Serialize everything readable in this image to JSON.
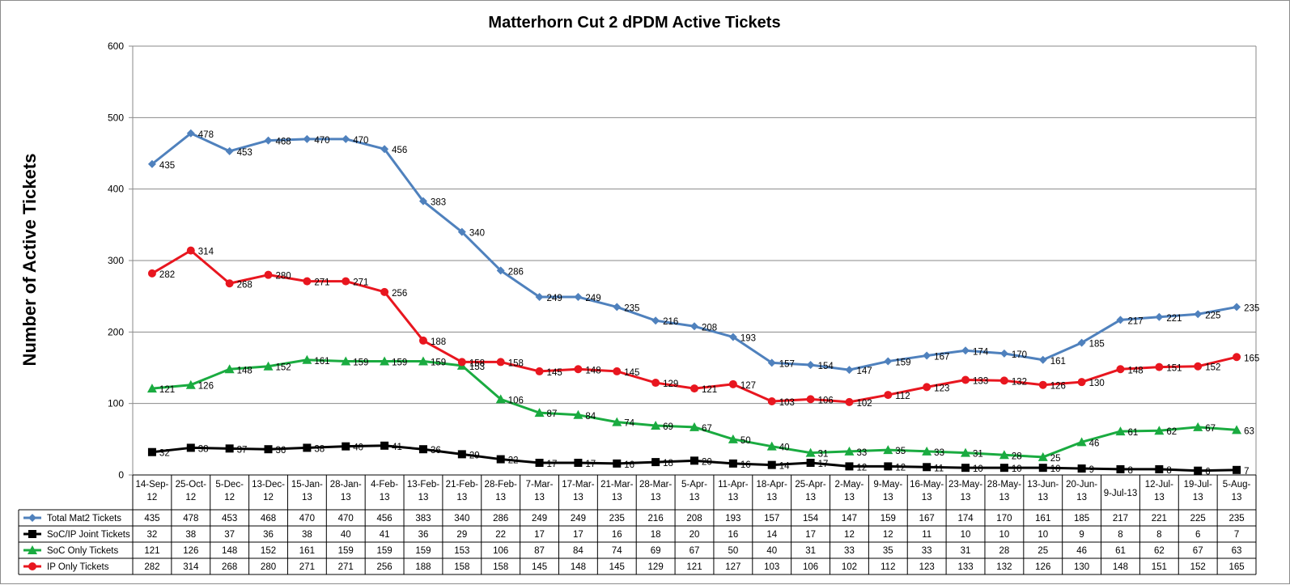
{
  "chart_data": {
    "type": "line",
    "title": "Matterhorn Cut 2 dPDM Active Tickets",
    "ylabel": "Number of Active Tickets",
    "xlabel": "",
    "ylim": [
      0,
      600
    ],
    "yticks": [
      "0",
      "100",
      "200",
      "300",
      "400",
      "500",
      "600"
    ],
    "grid": true,
    "legend": "data table below chart",
    "categories": [
      [
        "14-Sep-",
        "12"
      ],
      [
        "25-Oct-",
        "12"
      ],
      [
        "5-Dec-",
        "12"
      ],
      [
        "13-Dec-",
        "12"
      ],
      [
        "15-Jan-",
        "13"
      ],
      [
        "28-Jan-",
        "13"
      ],
      [
        "4-Feb-",
        "13"
      ],
      [
        "13-Feb-",
        "13"
      ],
      [
        "21-Feb-",
        "13"
      ],
      [
        "28-Feb-",
        "13"
      ],
      [
        "7-Mar-",
        "13"
      ],
      [
        "17-Mar-",
        "13"
      ],
      [
        "21-Mar-",
        "13"
      ],
      [
        "28-Mar-",
        "13"
      ],
      [
        "5-Apr-",
        "13"
      ],
      [
        "11-Apr-",
        "13"
      ],
      [
        "18-Apr-",
        "13"
      ],
      [
        "25-Apr-",
        "13"
      ],
      [
        "2-May-",
        "13"
      ],
      [
        "9-May-",
        "13"
      ],
      [
        "16-May-",
        "13"
      ],
      [
        "23-May-",
        "13"
      ],
      [
        "28-May-",
        "13"
      ],
      [
        "13-Jun-",
        "13"
      ],
      [
        "20-Jun-",
        "13"
      ],
      [
        "9-Jul-13"
      ],
      [
        "12-Jul-",
        "13"
      ],
      [
        "19-Jul-",
        "13"
      ],
      [
        "5-Aug-",
        "13"
      ]
    ],
    "series": [
      {
        "name": "Total Mat2 Tickets",
        "color": "#4f81bd",
        "marker": "diamond",
        "values": [
          435,
          478,
          453,
          468,
          470,
          470,
          456,
          383,
          340,
          286,
          249,
          249,
          235,
          216,
          208,
          193,
          157,
          154,
          147,
          159,
          167,
          174,
          170,
          161,
          185,
          217,
          221,
          225,
          235
        ]
      },
      {
        "name": "SoC/IP Joint Tickets",
        "color": "#000000",
        "marker": "square",
        "values": [
          32,
          38,
          37,
          36,
          38,
          40,
          41,
          36,
          29,
          22,
          17,
          17,
          16,
          18,
          20,
          16,
          14,
          17,
          12,
          12,
          11,
          10,
          10,
          10,
          9,
          8,
          8,
          6,
          7
        ]
      },
      {
        "name": "SoC Only Tickets",
        "color": "#1aab40",
        "marker": "triangle",
        "values": [
          121,
          126,
          148,
          152,
          161,
          159,
          159,
          159,
          153,
          106,
          87,
          84,
          74,
          69,
          67,
          50,
          40,
          31,
          33,
          35,
          33,
          31,
          28,
          25,
          46,
          61,
          62,
          67,
          63
        ]
      },
      {
        "name": "IP Only Tickets",
        "color": "#e8161f",
        "marker": "circle",
        "values": [
          282,
          314,
          268,
          280,
          271,
          271,
          256,
          188,
          158,
          158,
          145,
          148,
          145,
          129,
          121,
          127,
          103,
          106,
          102,
          112,
          123,
          133,
          132,
          126,
          130,
          148,
          151,
          152,
          165
        ]
      }
    ]
  }
}
